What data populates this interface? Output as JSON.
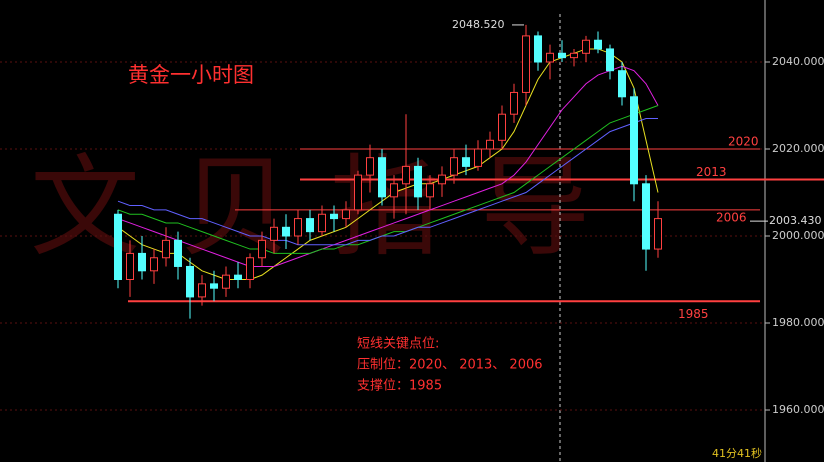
{
  "chart_data": {
    "type": "candlestick",
    "title": "黄金一小时图",
    "watermark": "文贝指导",
    "ylim": [
      1948.05,
      2054.25
    ],
    "yticks": [
      {
        "value": 1960,
        "label": "1960.000"
      },
      {
        "value": 1980,
        "label": "1980.000"
      },
      {
        "value": 2000,
        "label": "2000.000"
      },
      {
        "value": 2020,
        "label": "2020.000"
      },
      {
        "value": 2040,
        "label": "2040.000"
      }
    ],
    "up_color": "#ff4040",
    "down_color": "#54ffff",
    "candles": [
      [
        2005,
        2006,
        1988,
        1990
      ],
      [
        1990,
        1999,
        1986,
        1996
      ],
      [
        1996,
        2000,
        1990,
        1992
      ],
      [
        1992,
        1997,
        1989,
        1995
      ],
      [
        1995,
        2002,
        1993,
        1999
      ],
      [
        1999,
        2001,
        1990,
        1993
      ],
      [
        1993,
        1995,
        1981,
        1986
      ],
      [
        1986,
        1991,
        1984,
        1989
      ],
      [
        1989,
        1992,
        1985,
        1988
      ],
      [
        1988,
        1993,
        1986,
        1991
      ],
      [
        1991,
        1994,
        1988,
        1990
      ],
      [
        1990,
        1996,
        1988,
        1995
      ],
      [
        1995,
        2001,
        1993,
        1999
      ],
      [
        1999,
        2004,
        1996,
        2002
      ],
      [
        2002,
        2005,
        1997,
        2000
      ],
      [
        2000,
        2006,
        1998,
        2004
      ],
      [
        2004,
        2006,
        1999,
        2001
      ],
      [
        2001,
        2007,
        2000,
        2005
      ],
      [
        2005,
        2007,
        2001,
        2004
      ],
      [
        2004,
        2008,
        2002,
        2006
      ],
      [
        2006,
        2015,
        2005,
        2014
      ],
      [
        2014,
        2021,
        2010,
        2018
      ],
      [
        2018,
        2020,
        2007,
        2009
      ],
      [
        2009,
        2014,
        2004,
        2012
      ],
      [
        2012,
        2028,
        2005,
        2016
      ],
      [
        2016,
        2018,
        2006,
        2009
      ],
      [
        2009,
        2014,
        2006,
        2012
      ],
      [
        2012,
        2016,
        2009,
        2014
      ],
      [
        2014,
        2020,
        2012,
        2018
      ],
      [
        2018,
        2021,
        2014,
        2016
      ],
      [
        2016,
        2022,
        2015,
        2020
      ],
      [
        2020,
        2024,
        2018,
        2022
      ],
      [
        2022,
        2030,
        2020,
        2028
      ],
      [
        2028,
        2035,
        2026,
        2033
      ],
      [
        2033,
        2048.52,
        2030,
        2046
      ],
      [
        2046,
        2047,
        2038,
        2040
      ],
      [
        2040,
        2044,
        2036,
        2042
      ],
      [
        2042,
        2045,
        2040,
        2041
      ],
      [
        2041,
        2043,
        2039,
        2042
      ],
      [
        2042,
        2046,
        2040,
        2045
      ],
      [
        2045,
        2047,
        2042,
        2043
      ],
      [
        2043,
        2044,
        2036,
        2038
      ],
      [
        2038,
        2040,
        2030,
        2032
      ],
      [
        2032,
        2034,
        2008,
        2012
      ],
      [
        2012,
        2014,
        1992,
        1997
      ],
      [
        1997,
        2008,
        1995,
        2004
      ]
    ],
    "series": [
      {
        "color": "#e8e020",
        "values": [
          2002,
          2000,
          1998,
          1997,
          1996,
          1996,
          1994,
          1992,
          1991,
          1990,
          1990,
          1990,
          1991,
          1993,
          1995,
          1997,
          1999,
          2000,
          2001,
          2002,
          2004,
          2006,
          2008,
          2010,
          2011,
          2012,
          2012,
          2013,
          2014,
          2015,
          2016,
          2018,
          2020,
          2024,
          2030,
          2036,
          2040,
          2041,
          2042,
          2043,
          2043,
          2042,
          2040,
          2034,
          2022,
          2010
        ]
      },
      {
        "color": "#e020e0",
        "values": [
          2004,
          2003,
          2002,
          2001,
          2000,
          1999,
          1998,
          1997,
          1996,
          1995,
          1994,
          1993,
          1993,
          1993,
          1994,
          1995,
          1996,
          1997,
          1998,
          1999,
          2000,
          2001,
          2002,
          2003,
          2004,
          2005,
          2006,
          2007,
          2008,
          2009,
          2010,
          2011,
          2012,
          2014,
          2017,
          2021,
          2025,
          2029,
          2032,
          2035,
          2037,
          2038,
          2039,
          2038,
          2035,
          2030
        ]
      },
      {
        "color": "#20c020",
        "values": [
          2006,
          2005,
          2005,
          2004,
          2003,
          2003,
          2002,
          2001,
          2000,
          1999,
          1998,
          1997,
          1997,
          1996,
          1996,
          1996,
          1996,
          1997,
          1997,
          1998,
          1998,
          1999,
          2000,
          2001,
          2001,
          2002,
          2003,
          2004,
          2005,
          2006,
          2007,
          2008,
          2009,
          2010,
          2012,
          2014,
          2016,
          2018,
          2020,
          2022,
          2024,
          2026,
          2027,
          2028,
          2029,
          2030
        ]
      },
      {
        "color": "#6060ff",
        "values": [
          2008,
          2007,
          2007,
          2006,
          2006,
          2005,
          2004,
          2004,
          2003,
          2002,
          2001,
          2000,
          2000,
          1999,
          1999,
          1998,
          1998,
          1998,
          1998,
          1998,
          1999,
          1999,
          2000,
          2000,
          2001,
          2002,
          2002,
          2003,
          2004,
          2005,
          2006,
          2007,
          2008,
          2009,
          2010,
          2012,
          2014,
          2016,
          2018,
          2020,
          2022,
          2024,
          2025,
          2026,
          2027,
          2027
        ]
      }
    ],
    "levels": [
      2020,
      2013,
      2006,
      1985
    ],
    "level_color": "#ff4040",
    "high_marker": {
      "value": 2048.52,
      "label": "2048.520"
    },
    "last_price": {
      "value": 2003.43,
      "label": "2003.430"
    },
    "notes": [
      "短线关键点位:",
      "压制位：2020、 2013、 2006",
      "支撑位：1985"
    ],
    "timer": "41分41秒"
  }
}
